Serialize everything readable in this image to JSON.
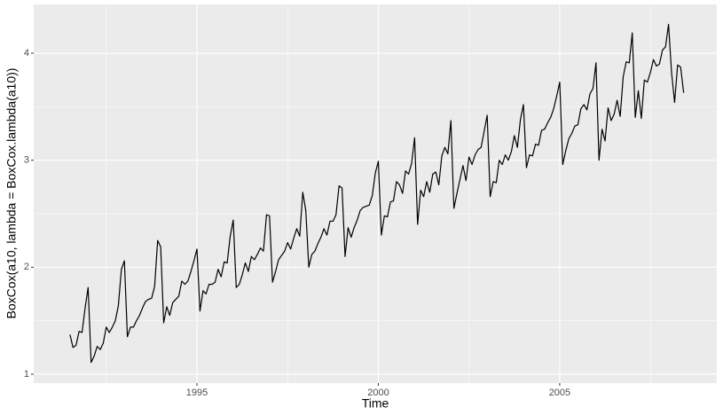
{
  "chart_data": {
    "type": "line",
    "xlabel": "Time",
    "ylabel": "BoxCox(a10, lambda = BoxCox.lambda(a10))",
    "x": [
      1991.5,
      1991.583,
      1991.667,
      1991.75,
      1991.833,
      1991.917,
      1992,
      1992.083,
      1992.167,
      1992.25,
      1992.333,
      1992.417,
      1992.5,
      1992.583,
      1992.667,
      1992.75,
      1992.833,
      1992.917,
      1993,
      1993.083,
      1993.167,
      1993.25,
      1993.333,
      1993.417,
      1993.5,
      1993.583,
      1993.667,
      1993.75,
      1993.833,
      1993.917,
      1994,
      1994.083,
      1994.167,
      1994.25,
      1994.333,
      1994.417,
      1994.5,
      1994.583,
      1994.667,
      1994.75,
      1994.833,
      1994.917,
      1995,
      1995.083,
      1995.167,
      1995.25,
      1995.333,
      1995.417,
      1995.5,
      1995.583,
      1995.667,
      1995.75,
      1995.833,
      1995.917,
      1996,
      1996.083,
      1996.167,
      1996.25,
      1996.333,
      1996.417,
      1996.5,
      1996.583,
      1996.667,
      1996.75,
      1996.833,
      1996.917,
      1997,
      1997.083,
      1997.167,
      1997.25,
      1997.333,
      1997.417,
      1997.5,
      1997.583,
      1997.667,
      1997.75,
      1997.833,
      1997.917,
      1998,
      1998.083,
      1998.167,
      1998.25,
      1998.333,
      1998.417,
      1998.5,
      1998.583,
      1998.667,
      1998.75,
      1998.833,
      1998.917,
      1999,
      1999.083,
      1999.167,
      1999.25,
      1999.333,
      1999.417,
      1999.5,
      1999.583,
      1999.667,
      1999.75,
      1999.833,
      1999.917,
      2000,
      2000.083,
      2000.167,
      2000.25,
      2000.333,
      2000.417,
      2000.5,
      2000.583,
      2000.667,
      2000.75,
      2000.833,
      2000.917,
      2001,
      2001.083,
      2001.167,
      2001.25,
      2001.333,
      2001.417,
      2001.5,
      2001.583,
      2001.667,
      2001.75,
      2001.833,
      2001.917,
      2002,
      2002.083,
      2002.167,
      2002.25,
      2002.333,
      2002.417,
      2002.5,
      2002.583,
      2002.667,
      2002.75,
      2002.833,
      2002.917,
      2003,
      2003.083,
      2003.167,
      2003.25,
      2003.333,
      2003.417,
      2003.5,
      2003.583,
      2003.667,
      2003.75,
      2003.833,
      2003.917,
      2004,
      2004.083,
      2004.167,
      2004.25,
      2004.333,
      2004.417,
      2004.5,
      2004.583,
      2004.667,
      2004.75,
      2004.833,
      2004.917,
      2005,
      2005.083,
      2005.167,
      2005.25,
      2005.333,
      2005.417,
      2005.5,
      2005.583,
      2005.667,
      2005.75,
      2005.833,
      2005.917,
      2006,
      2006.083,
      2006.167,
      2006.25,
      2006.333,
      2006.417,
      2006.5,
      2006.583,
      2006.667,
      2006.75,
      2006.833,
      2006.917,
      2007,
      2007.083,
      2007.167,
      2007.25,
      2007.333,
      2007.417,
      2007.5,
      2007.583,
      2007.667,
      2007.75,
      2007.833,
      2007.917,
      2008,
      2008.083,
      2008.167,
      2008.25,
      2008.333,
      2008.417
    ],
    "values": [
      1.37,
      1.25,
      1.27,
      1.4,
      1.39,
      1.62,
      1.81,
      1.11,
      1.17,
      1.26,
      1.23,
      1.29,
      1.44,
      1.39,
      1.44,
      1.5,
      1.64,
      1.98,
      2.06,
      1.35,
      1.44,
      1.44,
      1.5,
      1.55,
      1.62,
      1.68,
      1.7,
      1.71,
      1.82,
      2.25,
      2.19,
      1.48,
      1.63,
      1.55,
      1.67,
      1.7,
      1.73,
      1.87,
      1.84,
      1.87,
      1.96,
      2.06,
      2.17,
      1.59,
      1.78,
      1.75,
      1.84,
      1.84,
      1.86,
      1.98,
      1.91,
      2.05,
      2.04,
      2.29,
      2.44,
      1.81,
      1.84,
      1.93,
      2.04,
      1.96,
      2.1,
      2.07,
      2.12,
      2.18,
      2.15,
      2.49,
      2.48,
      1.86,
      1.96,
      2.07,
      2.11,
      2.15,
      2.23,
      2.17,
      2.27,
      2.36,
      2.29,
      2.7,
      2.53,
      2.0,
      2.12,
      2.15,
      2.22,
      2.28,
      2.36,
      2.3,
      2.43,
      2.43,
      2.49,
      2.76,
      2.74,
      2.1,
      2.37,
      2.28,
      2.37,
      2.44,
      2.53,
      2.56,
      2.57,
      2.58,
      2.67,
      2.88,
      2.99,
      2.3,
      2.48,
      2.47,
      2.61,
      2.62,
      2.8,
      2.77,
      2.69,
      2.9,
      2.87,
      2.97,
      3.21,
      2.4,
      2.72,
      2.66,
      2.8,
      2.7,
      2.87,
      2.89,
      2.77,
      3.04,
      3.12,
      3.06,
      3.37,
      2.55,
      2.69,
      2.82,
      2.95,
      2.81,
      3.03,
      2.96,
      3.05,
      3.1,
      3.12,
      3.27,
      3.42,
      2.66,
      2.8,
      2.79,
      3.0,
      2.96,
      3.05,
      3.0,
      3.08,
      3.23,
      3.12,
      3.38,
      3.52,
      2.93,
      3.05,
      3.04,
      3.15,
      3.14,
      3.28,
      3.29,
      3.35,
      3.4,
      3.48,
      3.6,
      3.73,
      2.96,
      3.09,
      3.2,
      3.25,
      3.32,
      3.33,
      3.48,
      3.52,
      3.47,
      3.62,
      3.67,
      3.91,
      3.0,
      3.29,
      3.18,
      3.49,
      3.37,
      3.43,
      3.56,
      3.41,
      3.78,
      3.92,
      3.91,
      4.19,
      3.4,
      3.65,
      3.39,
      3.75,
      3.73,
      3.82,
      3.94,
      3.88,
      3.9,
      4.03,
      4.06,
      4.27,
      3.82,
      3.54,
      3.89,
      3.87,
      3.63
    ],
    "color": "#000000",
    "xlim": [
      1990.5,
      2009.33
    ],
    "xticks": [
      1995,
      2000,
      2005
    ],
    "ylim": [
      0.917,
      4.456
    ],
    "yticks": [
      1,
      2,
      3,
      4
    ],
    "grid": true
  }
}
